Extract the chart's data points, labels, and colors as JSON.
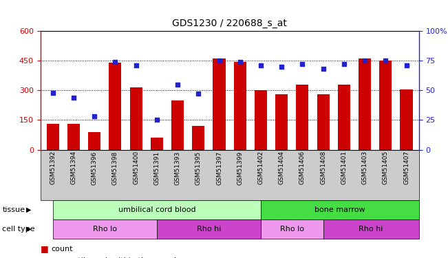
{
  "title": "GDS1230 / 220688_s_at",
  "samples": [
    "GSM51392",
    "GSM51394",
    "GSM51396",
    "GSM51398",
    "GSM51400",
    "GSM51391",
    "GSM51393",
    "GSM51395",
    "GSM51397",
    "GSM51399",
    "GSM51402",
    "GSM51404",
    "GSM51406",
    "GSM51408",
    "GSM51401",
    "GSM51403",
    "GSM51405",
    "GSM51407"
  ],
  "counts": [
    130,
    130,
    90,
    440,
    315,
    60,
    250,
    120,
    460,
    445,
    300,
    280,
    330,
    280,
    330,
    460,
    450,
    305
  ],
  "percentiles": [
    48,
    44,
    28,
    74,
    71,
    25,
    55,
    47,
    75,
    74,
    71,
    70,
    72,
    68,
    72,
    75,
    75,
    71
  ],
  "ylim_left": [
    0,
    600
  ],
  "ylim_right": [
    0,
    100
  ],
  "yticks_left": [
    0,
    150,
    300,
    450,
    600
  ],
  "yticks_right": [
    0,
    25,
    50,
    75,
    100
  ],
  "bar_color": "#cc0000",
  "dot_color": "#2222cc",
  "tissue_groups": [
    {
      "label": "umbilical cord blood",
      "start": 0,
      "end": 10,
      "color": "#bbffbb"
    },
    {
      "label": "bone marrow",
      "start": 10,
      "end": 18,
      "color": "#44dd44"
    }
  ],
  "cell_type_groups": [
    {
      "label": "Rho lo",
      "start": 0,
      "end": 5,
      "color": "#ee99ee"
    },
    {
      "label": "Rho hi",
      "start": 5,
      "end": 10,
      "color": "#cc44cc"
    },
    {
      "label": "Rho lo",
      "start": 10,
      "end": 13,
      "color": "#ee99ee"
    },
    {
      "label": "Rho hi",
      "start": 13,
      "end": 18,
      "color": "#cc44cc"
    }
  ],
  "legend_count_color": "#cc0000",
  "legend_dot_color": "#2222cc",
  "axis_color_left": "#cc0000",
  "axis_color_right": "#2222cc",
  "xtick_bg_color": "#cccccc",
  "plot_bg_color": "#ffffff"
}
